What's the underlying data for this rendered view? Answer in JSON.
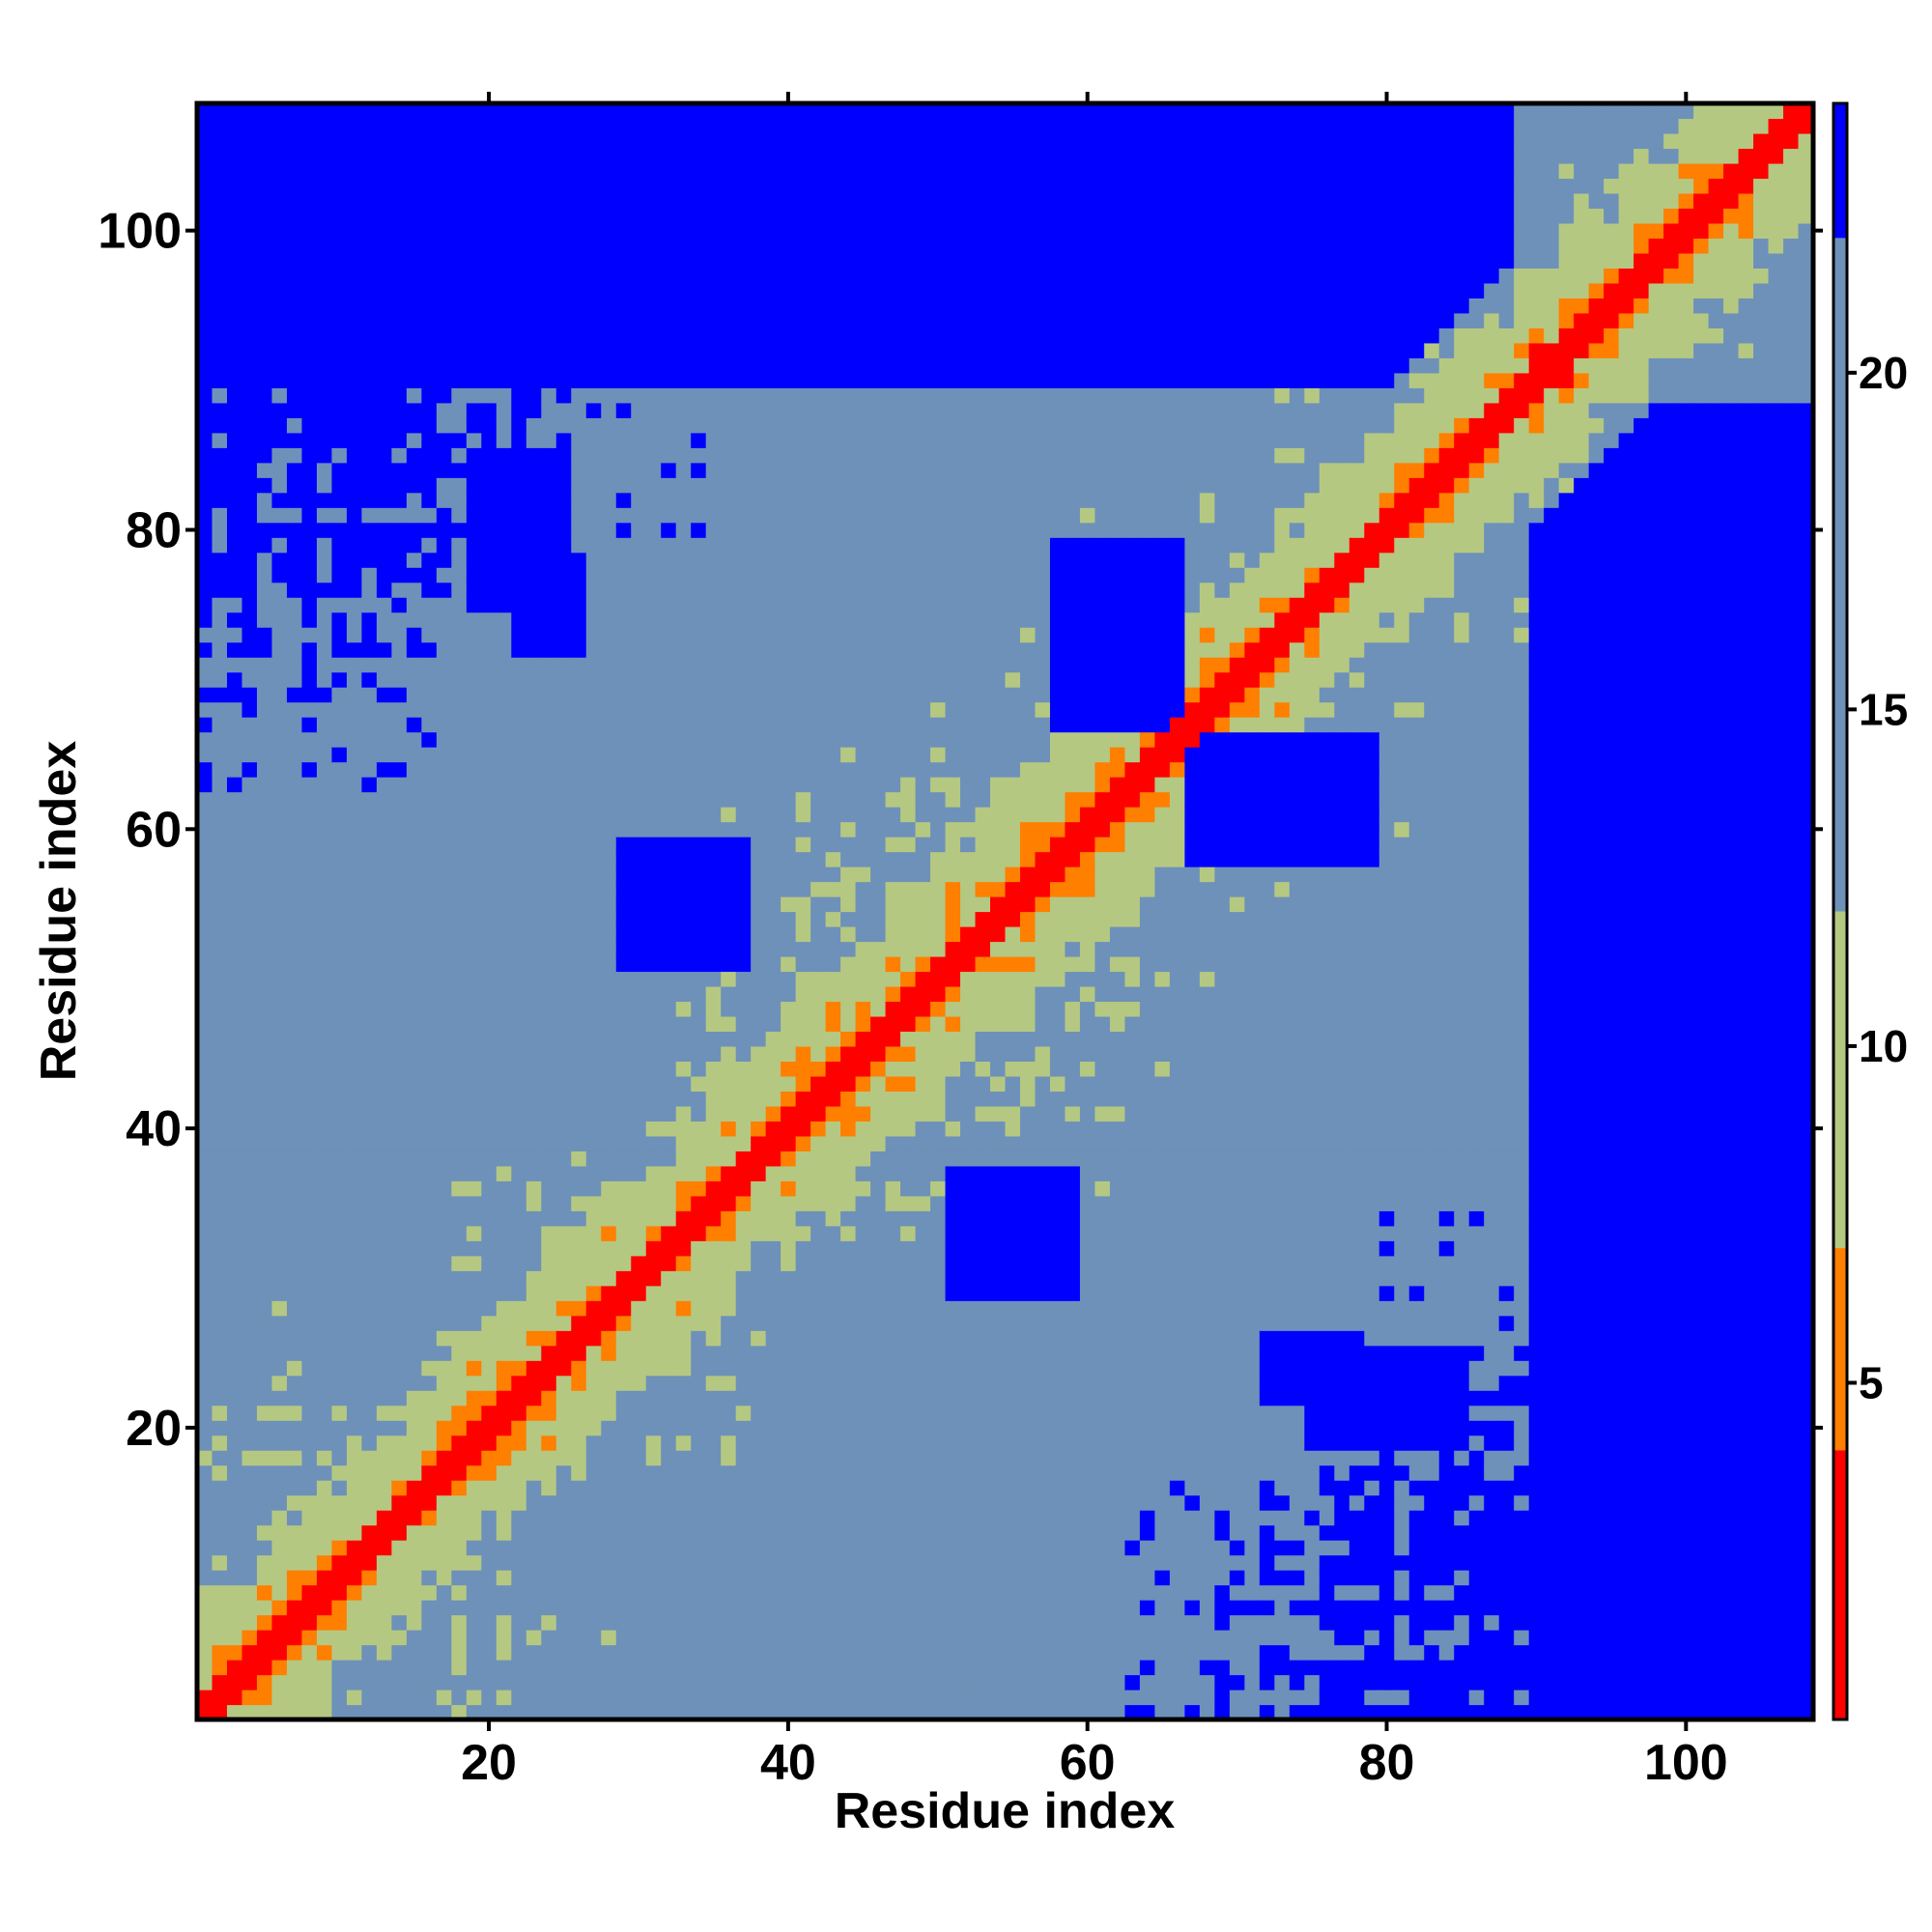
{
  "chart_data": {
    "type": "heatmap",
    "title": "",
    "xlabel": "Residue index",
    "ylabel": "Residue index",
    "n_residues": 108,
    "xlim": [
      0.5,
      108.5
    ],
    "ylim": [
      0.5,
      108.5
    ],
    "x_ticks": [
      20,
      40,
      60,
      80,
      100
    ],
    "y_ticks": [
      20,
      40,
      60,
      80,
      100
    ],
    "colorbar": {
      "ticks": [
        5,
        10,
        15,
        20
      ],
      "range": [
        0,
        24
      ],
      "colors": {
        "red": "#ff0000",
        "orange": "#ff7f00",
        "khaki": "#b5c882",
        "steel": "#6e91b9",
        "blue": "#0000ff"
      }
    },
    "grid": false,
    "legend": "colorbar-right"
  }
}
